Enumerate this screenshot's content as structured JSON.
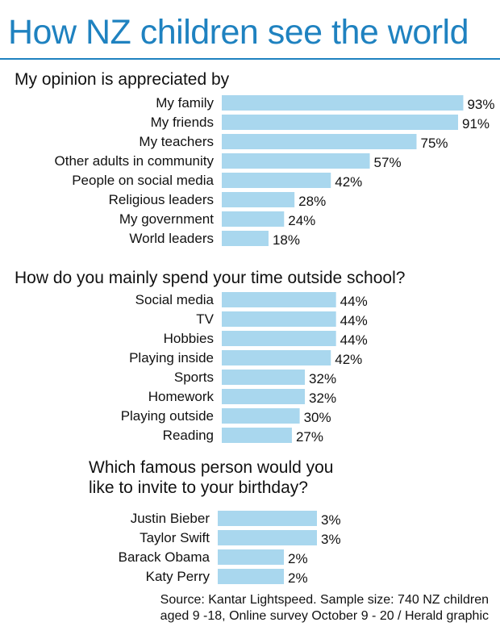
{
  "title": "How NZ children see the world",
  "colors": {
    "accent": "#1f82c0",
    "bar": "#a9d7ee",
    "text": "#111111"
  },
  "chart_data": [
    {
      "type": "bar",
      "orientation": "horizontal",
      "title": "My opinion is appreciated by",
      "categories": [
        "My family",
        "My friends",
        "My teachers",
        "Other adults in community",
        "People on social media",
        "Religious leaders",
        "My government",
        "World leaders"
      ],
      "values": [
        93,
        91,
        75,
        57,
        42,
        28,
        24,
        18
      ],
      "value_suffix": "%",
      "xlim": [
        0,
        100
      ],
      "grid": false,
      "legend": "none"
    },
    {
      "type": "bar",
      "orientation": "horizontal",
      "title": "How do you mainly spend your time outside school?",
      "categories": [
        "Social media",
        "TV",
        "Hobbies",
        "Playing inside",
        "Sports",
        "Homework",
        "Playing outside",
        "Reading"
      ],
      "values": [
        44,
        44,
        44,
        42,
        32,
        32,
        30,
        27
      ],
      "value_suffix": "%",
      "xlim": [
        0,
        100
      ],
      "grid": false,
      "legend": "none"
    },
    {
      "type": "bar",
      "orientation": "horizontal",
      "title_lines": [
        "Which famous person would you",
        "like to invite to your birthday?"
      ],
      "categories": [
        "Justin Bieber",
        "Taylor Swift",
        "Barack Obama",
        "Katy Perry"
      ],
      "values": [
        3,
        3,
        2,
        2
      ],
      "value_suffix": "%",
      "xlim": [
        0,
        3.5
      ],
      "grid": false,
      "legend": "none"
    }
  ],
  "source_lines": [
    "Source: Kantar Lightspeed. Sample size: 740 NZ children",
    "aged 9 -18, Online survey October 9 - 20 / Herald graphic"
  ]
}
